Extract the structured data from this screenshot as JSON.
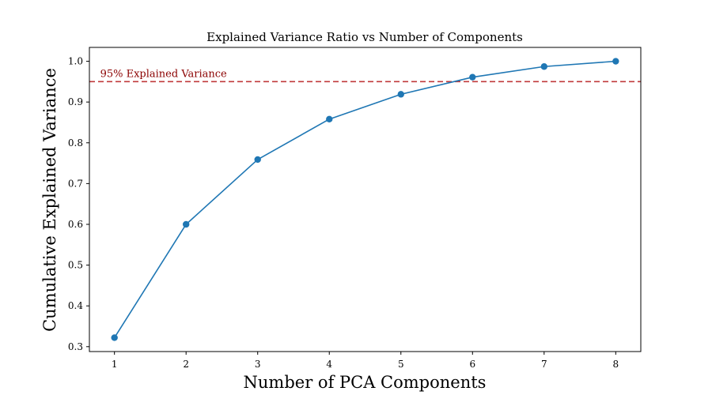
{
  "chart_data": {
    "type": "line",
    "title": "Explained Variance Ratio vs Number of Components",
    "xlabel": "Number of PCA Components",
    "ylabel": "Cumulative Explained Variance",
    "x": [
      1,
      2,
      3,
      4,
      5,
      6,
      7,
      8
    ],
    "series": [
      {
        "values": [
          0.322,
          0.6,
          0.759,
          0.858,
          0.919,
          0.961,
          0.987,
          1.0
        ],
        "color": "#1f77b4",
        "marker": "circle"
      }
    ],
    "xlim": [
      0.65,
      8.35
    ],
    "ylim": [
      0.288,
      1.034
    ],
    "xticks": [
      1,
      2,
      3,
      4,
      5,
      6,
      7,
      8
    ],
    "xtick_labels": [
      "1",
      "2",
      "3",
      "4",
      "5",
      "6",
      "7",
      "8"
    ],
    "yticks": [
      0.3,
      0.4,
      0.5,
      0.6,
      0.7,
      0.8,
      0.9,
      1.0
    ],
    "ytick_labels": [
      "0.3",
      "0.4",
      "0.5",
      "0.6",
      "0.7",
      "0.8",
      "0.9",
      "1.0"
    ],
    "reference_line": {
      "y": 0.95,
      "label": "95% Explained Variance",
      "color": "#c0393b",
      "text_color": "#8b0000",
      "style": "dashed"
    },
    "grid": false,
    "legend": "none"
  }
}
